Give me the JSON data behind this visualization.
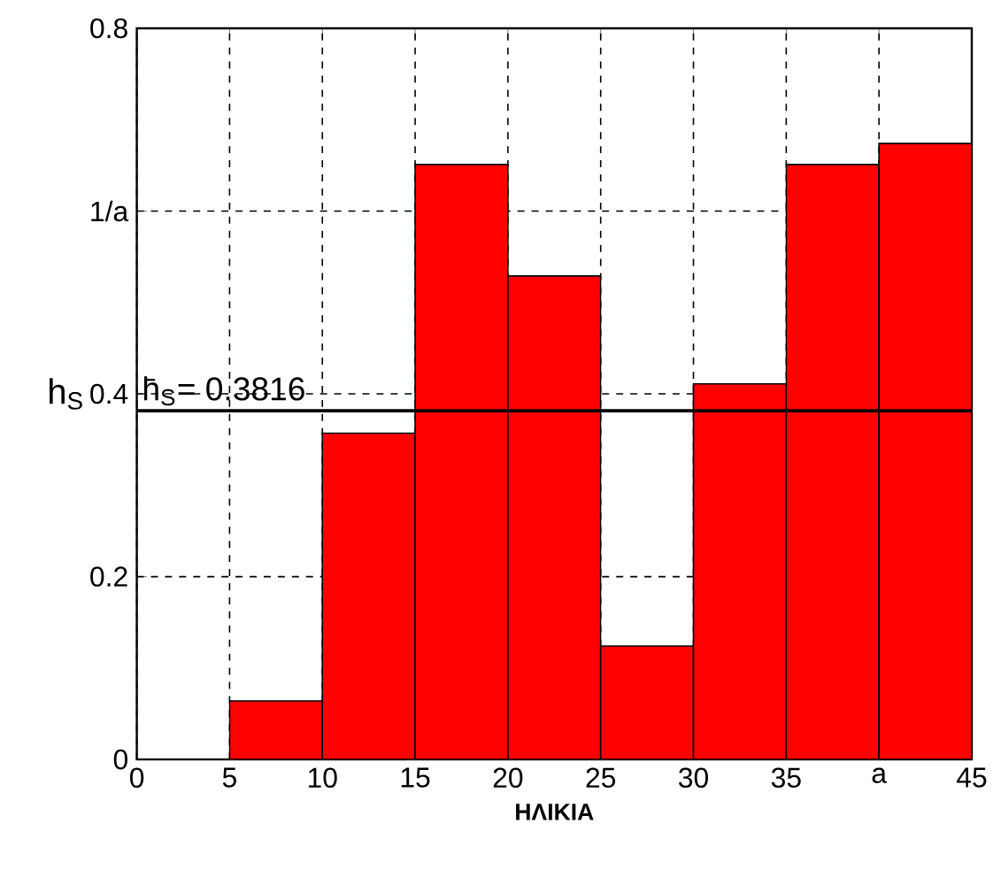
{
  "chart_data": {
    "type": "histogram",
    "xlabel": "ΗΛΙΚΙΑ",
    "ylabel": "h$_{S}$",
    "bins": [
      0,
      5,
      10,
      15,
      20,
      25,
      30,
      35,
      40,
      45
    ],
    "values": [
      0,
      0.064,
      0.357,
      0.651,
      0.529,
      0.124,
      0.411,
      0.651,
      0.674
    ],
    "color": "#ff0000",
    "xlim": [
      0,
      45
    ],
    "ylim": [
      0,
      0.8
    ],
    "xticks": [
      0,
      5,
      10,
      15,
      20,
      25,
      30,
      35,
      {
        "value": 40,
        "label": "a"
      },
      45
    ],
    "yticks": [
      0,
      0.2,
      0.4,
      {
        "value": 0.6,
        "label": "1/a"
      },
      0.8
    ],
    "ref_lines": [
      {
        "axis": "y",
        "value": 0.3816,
        "label": "h̄$_{S}$= 0.3816",
        "color": "#000000"
      }
    ],
    "grid": true
  }
}
